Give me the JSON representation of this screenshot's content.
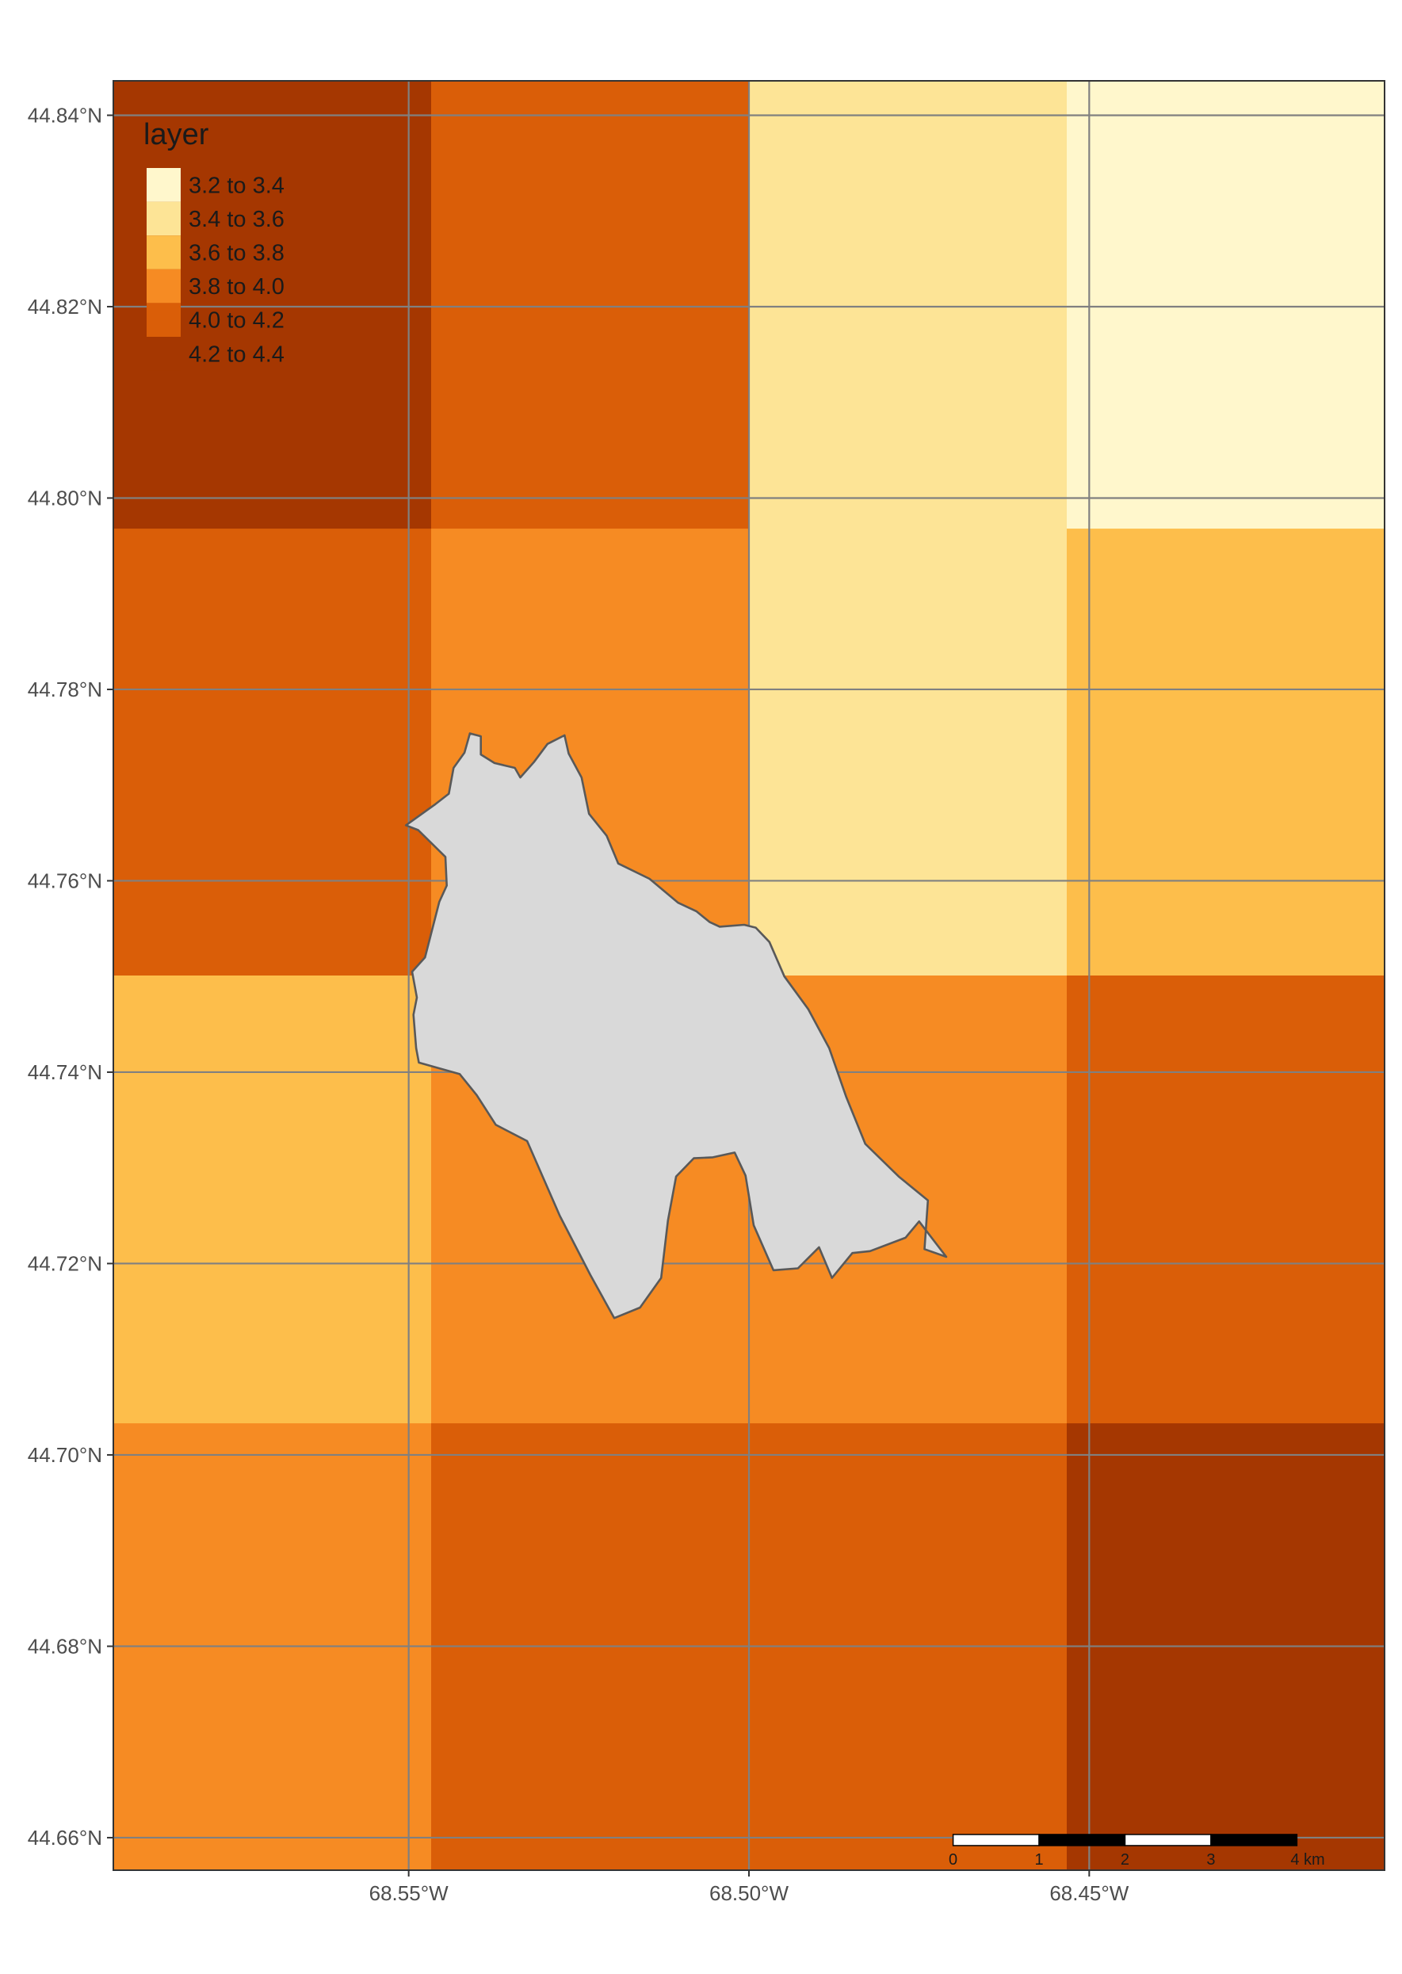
{
  "map": {
    "legend": {
      "title": "layer",
      "classes": [
        {
          "label": "3.2 to 3.4",
          "color": "#FFF7CC"
        },
        {
          "label": "3.4 to 3.6",
          "color": "#FDE496"
        },
        {
          "label": "3.6 to 3.8",
          "color": "#FDBE4B"
        },
        {
          "label": "3.8 to 4.0",
          "color": "#F68B23"
        },
        {
          "label": "4.0 to 4.2",
          "color": "#DA5E08"
        },
        {
          "label": "4.2 to 4.4",
          "color": "#A53701"
        }
      ]
    },
    "lat_ticks": [
      {
        "value": 44.84,
        "label": "44.84°N"
      },
      {
        "value": 44.82,
        "label": "44.82°N"
      },
      {
        "value": 44.8,
        "label": "44.80°N"
      },
      {
        "value": 44.78,
        "label": "44.78°N"
      },
      {
        "value": 44.76,
        "label": "44.76°N"
      },
      {
        "value": 44.74,
        "label": "44.74°N"
      },
      {
        "value": 44.72,
        "label": "44.72°N"
      },
      {
        "value": 44.7,
        "label": "44.70°N"
      },
      {
        "value": 44.68,
        "label": "44.68°N"
      },
      {
        "value": 44.66,
        "label": "44.66°N"
      }
    ],
    "lon_ticks": [
      {
        "value": -68.55,
        "label": "68.55°W"
      },
      {
        "value": -68.5,
        "label": "68.50°W"
      },
      {
        "value": -68.45,
        "label": "68.45°W"
      }
    ],
    "lat_range": [
      44.6566,
      44.8436
    ],
    "lon_range": [
      -68.5934,
      -68.4066
    ],
    "raster": {
      "lon_edges": [
        -68.5934,
        -68.5467,
        -68.5,
        -68.4533,
        -68.4066
      ],
      "lat_edges": [
        44.8436,
        44.7968,
        44.7501,
        44.7033,
        44.6566
      ],
      "class_index": [
        [
          5,
          4,
          1,
          0
        ],
        [
          4,
          3,
          1,
          2
        ],
        [
          2,
          3,
          3,
          4
        ],
        [
          3,
          4,
          4,
          5
        ]
      ]
    },
    "polygon": {
      "fill": "#D9D9D9",
      "stroke": "#595959",
      "coords": [
        [
          -68.5504,
          44.7658
        ],
        [
          -68.5461,
          44.768
        ],
        [
          -68.5441,
          44.7691
        ],
        [
          -68.5434,
          44.7718
        ],
        [
          -68.5418,
          44.7734
        ],
        [
          -68.541,
          44.7754
        ],
        [
          -68.5394,
          44.7751
        ],
        [
          -68.5394,
          44.7732
        ],
        [
          -68.5374,
          44.7723
        ],
        [
          -68.5344,
          44.7718
        ],
        [
          -68.5336,
          44.7708
        ],
        [
          -68.5316,
          44.7724
        ],
        [
          -68.5296,
          44.7743
        ],
        [
          -68.5271,
          44.7752
        ],
        [
          -68.5265,
          44.7733
        ],
        [
          -68.5246,
          44.7708
        ],
        [
          -68.5235,
          44.767
        ],
        [
          -68.5209,
          44.7647
        ],
        [
          -68.5192,
          44.7618
        ],
        [
          -68.5146,
          44.7602
        ],
        [
          -68.5104,
          44.7577
        ],
        [
          -68.5077,
          44.7568
        ],
        [
          -68.5058,
          44.7557
        ],
        [
          -68.5043,
          44.7552
        ],
        [
          -68.5007,
          44.7554
        ],
        [
          -68.499,
          44.7551
        ],
        [
          -68.497,
          44.7536
        ],
        [
          -68.4948,
          44.75
        ],
        [
          -68.4913,
          44.7466
        ],
        [
          -68.4882,
          44.7425
        ],
        [
          -68.4857,
          44.7374
        ],
        [
          -68.4829,
          44.7325
        ],
        [
          -68.478,
          44.7291
        ],
        [
          -68.4737,
          44.7266
        ],
        [
          -68.4742,
          44.7215
        ],
        [
          -68.471,
          44.7207
        ],
        [
          -68.475,
          44.7244
        ],
        [
          -68.477,
          44.7227
        ],
        [
          -68.4822,
          44.7213
        ],
        [
          -68.4848,
          44.7211
        ],
        [
          -68.4878,
          44.7185
        ],
        [
          -68.4897,
          44.7217
        ],
        [
          -68.4928,
          44.7195
        ],
        [
          -68.4964,
          44.7193
        ],
        [
          -68.4993,
          44.724
        ],
        [
          -68.5005,
          44.7292
        ],
        [
          -68.5021,
          44.7316
        ],
        [
          -68.5053,
          44.7311
        ],
        [
          -68.5081,
          44.731
        ],
        [
          -68.5107,
          44.7291
        ],
        [
          -68.5119,
          44.7245
        ],
        [
          -68.5129,
          44.7185
        ],
        [
          -68.516,
          44.7154
        ],
        [
          -68.5198,
          44.7143
        ],
        [
          -68.5233,
          44.7188
        ],
        [
          -68.5278,
          44.725
        ],
        [
          -68.5326,
          44.7328
        ],
        [
          -68.5372,
          44.7345
        ],
        [
          -68.54,
          44.7376
        ],
        [
          -68.5425,
          44.7398
        ],
        [
          -68.5485,
          44.741
        ],
        [
          -68.5489,
          44.7425
        ],
        [
          -68.5493,
          44.746
        ],
        [
          -68.5488,
          44.7478
        ],
        [
          -68.5495,
          44.7505
        ],
        [
          -68.5476,
          44.752
        ],
        [
          -68.5455,
          44.7578
        ],
        [
          -68.5444,
          44.7595
        ],
        [
          -68.5446,
          44.7625
        ],
        [
          -68.5486,
          44.7653
        ],
        [
          -68.5504,
          44.7658
        ]
      ]
    },
    "scale_bar": {
      "tick_labels": [
        "0",
        "1",
        "2",
        "3",
        "4 km"
      ],
      "start_lon": -68.47,
      "lat": 44.66,
      "segment_km": 1
    }
  }
}
